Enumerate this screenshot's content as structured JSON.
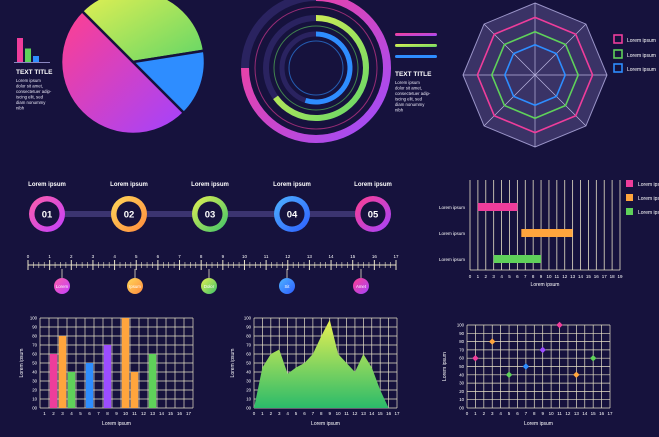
{
  "colors": {
    "background": "#16123d",
    "grid": "#e8e2c8",
    "pink": "#ee3d9b",
    "orange": "#ffa53d",
    "green": "#5fd15a",
    "blue": "#2e8dff",
    "purple": "#9b4dff",
    "lime": "#d8ef4a"
  },
  "top_left": {
    "text_title": "TEXT TITLE",
    "text_body": [
      "Lorem ipsum",
      "dolor sit amet,",
      "consectetuer adip-",
      "iscing elit, sed",
      "diam nonummy",
      "nibh"
    ]
  },
  "top_mid": {
    "text_title": "TEXT TITLE",
    "text_body": [
      "Lorem ipsum",
      "dolor sit amet,",
      "consectetuer adip-",
      "iscing elit, sed",
      "diam nonummy",
      "nibh"
    ]
  },
  "radar": {
    "legend": [
      "Lorem ipsum",
      "Lorem ipsum",
      "Lorem ipsum"
    ]
  },
  "process": {
    "steps": [
      {
        "number": "01",
        "label": "Lorem ipsum"
      },
      {
        "number": "02",
        "label": "Lorem ipsum"
      },
      {
        "number": "03",
        "label": "Lorem ipsum"
      },
      {
        "number": "04",
        "label": "Lorem ipsum"
      },
      {
        "number": "05",
        "label": "Lorem ipsum"
      }
    ],
    "ruler_ticks": [
      "0",
      "1",
      "2",
      "3",
      "4",
      "5",
      "6",
      "7",
      "8",
      "9",
      "10",
      "11",
      "12",
      "13",
      "14",
      "15",
      "16",
      "17"
    ],
    "markers": [
      "Lorem",
      "Ipsum",
      "Dolor",
      "Sit",
      "Amet"
    ]
  },
  "chart_data": [
    {
      "type": "pie",
      "slices": [
        {
          "value": 50,
          "color": "#ee3d9b"
        },
        {
          "value": 35,
          "color": "#b8e04a"
        },
        {
          "value": 15,
          "color": "#2e8dff"
        }
      ],
      "mini_bars": [
        80,
        45,
        20
      ]
    },
    {
      "type": "radial",
      "rings": [
        {
          "value": 75,
          "color": "#ee3d9b"
        },
        {
          "value": 65,
          "color": "#d8ef4a"
        },
        {
          "value": 55,
          "color": "#2e8dff"
        }
      ]
    },
    {
      "type": "radar",
      "axes": 8,
      "series": [
        {
          "color": "#ee3d9b",
          "values": [
            0.8,
            0.8,
            0.8,
            0.8,
            0.8,
            0.8,
            0.8,
            0.8
          ]
        },
        {
          "color": "#5fd15a",
          "values": [
            0.6,
            0.6,
            0.6,
            0.6,
            0.6,
            0.6,
            0.6,
            0.6
          ]
        },
        {
          "color": "#2e8dff",
          "values": [
            0.42,
            0.42,
            0.42,
            0.42,
            0.42,
            0.42,
            0.42,
            0.42
          ]
        }
      ]
    },
    {
      "type": "bar",
      "orientation": "horizontal",
      "ylabel": "Lorem ipsum",
      "xlabel": "Lorem ipsum",
      "x_ticks": [
        "0",
        "1",
        "2",
        "3",
        "4",
        "5",
        "6",
        "7",
        "8",
        "9",
        "10",
        "11",
        "12",
        "13",
        "14",
        "15",
        "16",
        "17",
        "18",
        "19"
      ],
      "xlim": [
        0,
        19
      ],
      "rows": [
        {
          "label": "Lorem ipsum",
          "start": 1,
          "end": 6,
          "color": "#ee3d9b"
        },
        {
          "label": "Lorem ipsum",
          "start": 6.5,
          "end": 13,
          "color": "#ffa53d"
        },
        {
          "label": "Lorem ipsum",
          "start": 3,
          "end": 9,
          "color": "#5fd15a"
        }
      ],
      "legend": [
        "Lorem ipsum",
        "Lorem ipsum",
        "Lorem ipsum"
      ]
    },
    {
      "type": "bar",
      "ylabel": "Lorem ipsum",
      "xlabel": "Lorem ipsum",
      "categories": [
        "1",
        "2",
        "3",
        "4",
        "5",
        "6",
        "7",
        "8",
        "9",
        "10",
        "11",
        "12",
        "13",
        "14",
        "15",
        "16",
        "17"
      ],
      "values": [
        null,
        60,
        80,
        40,
        null,
        50,
        null,
        70,
        null,
        100,
        40,
        null,
        60,
        null,
        null,
        null,
        null
      ],
      "colors": [
        "",
        "#ee3d9b",
        "#ffa53d",
        "#5fd15a",
        "",
        "#2e8dff",
        "",
        "#9b4dff",
        "",
        "#ffa53d",
        "#ffa53d",
        "",
        "#5fd15a",
        "",
        "",
        "",
        ""
      ],
      "ylim": [
        0,
        100
      ],
      "y_ticks": [
        "00",
        "10",
        "20",
        "30",
        "40",
        "50",
        "60",
        "70",
        "80",
        "90",
        "100"
      ]
    },
    {
      "type": "area",
      "ylabel": "Lorem ipsum",
      "xlabel": "Lorem ipsum",
      "x": [
        0,
        1,
        2,
        3,
        4,
        5,
        6,
        7,
        8,
        9,
        10,
        11,
        12,
        13,
        14,
        15,
        16,
        17
      ],
      "y": [
        0,
        45,
        60,
        65,
        38,
        45,
        50,
        60,
        80,
        98,
        60,
        50,
        40,
        60,
        45,
        20,
        0,
        0
      ],
      "xlim": [
        0,
        17
      ],
      "ylim": [
        0,
        100
      ],
      "y_ticks": [
        "00",
        "10",
        "20",
        "30",
        "40",
        "50",
        "60",
        "70",
        "80",
        "90",
        "100"
      ],
      "x_ticks": [
        "0",
        "1",
        "2",
        "3",
        "4",
        "5",
        "6",
        "7",
        "8",
        "9",
        "10",
        "11",
        "12",
        "13",
        "14",
        "15",
        "16",
        "17"
      ]
    },
    {
      "type": "scatter",
      "ylabel": "Lorem ipsum",
      "xlabel": "Lorem ipsum",
      "points": [
        {
          "x": 1,
          "y": 60,
          "color": "#ee3d9b"
        },
        {
          "x": 3,
          "y": 80,
          "color": "#ffa53d"
        },
        {
          "x": 5,
          "y": 40,
          "color": "#5fd15a"
        },
        {
          "x": 7,
          "y": 50,
          "color": "#2e8dff"
        },
        {
          "x": 9,
          "y": 70,
          "color": "#9b4dff"
        },
        {
          "x": 11,
          "y": 100,
          "color": "#ee3d9b"
        },
        {
          "x": 13,
          "y": 40,
          "color": "#ffa53d"
        },
        {
          "x": 15,
          "y": 60,
          "color": "#5fd15a"
        }
      ],
      "xlim": [
        0,
        17
      ],
      "ylim": [
        0,
        100
      ],
      "y_ticks": [
        "00",
        "10",
        "20",
        "30",
        "40",
        "50",
        "60",
        "70",
        "80",
        "90",
        "100"
      ],
      "x_ticks": [
        "0",
        "1",
        "2",
        "3",
        "4",
        "5",
        "6",
        "7",
        "8",
        "9",
        "10",
        "11",
        "12",
        "13",
        "14",
        "15",
        "16",
        "17"
      ]
    }
  ]
}
